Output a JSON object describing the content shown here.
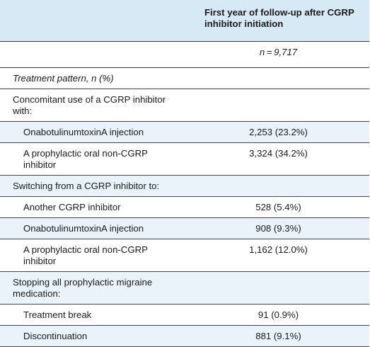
{
  "table": {
    "header": "First year of follow-up after CGRP inhibitor initiation",
    "n_value": "n = 9,717",
    "rows": [
      {
        "label": "Treatment pattern, n (%)",
        "value": "",
        "italic": true
      },
      {
        "label": "Concomitant use of a CGRP inhibitor with:",
        "value": ""
      },
      {
        "label": "OnabotulinumtoxinA injection",
        "value": "2,253 (23.2%)"
      },
      {
        "label": "A prophylactic oral non-CGRP inhibitor",
        "value": "3,324 (34.2%)"
      },
      {
        "label": "Switching from a CGRP inhibitor to:",
        "value": ""
      },
      {
        "label": "Another CGRP inhibitor",
        "value": "528 (5.4%)"
      },
      {
        "label": "OnabotulinumtoxinA injection",
        "value": "908 (9.3%)"
      },
      {
        "label": "A prophylactic oral non-CGRP inhibitor",
        "value": "1,162 (12.0%)"
      },
      {
        "label": "Stopping all prophylactic migraine medication:",
        "value": ""
      },
      {
        "label": "Treatment break",
        "value": "91 (0.9%)"
      },
      {
        "label": "Discontinuation",
        "value": "881 (9.1%)"
      }
    ]
  }
}
